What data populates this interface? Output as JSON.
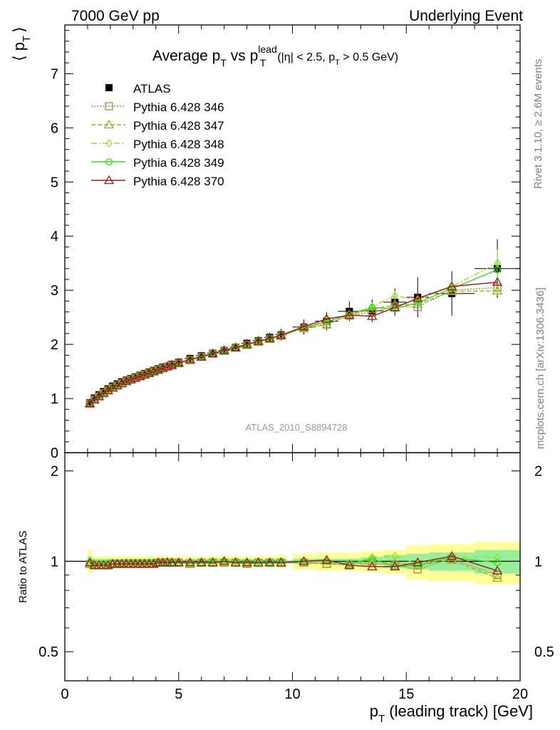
{
  "header": {
    "left": "7000 GeV pp",
    "right": "Underlying Event"
  },
  "side_labels": {
    "rivet": "Rivet 3.1.10, ≥ 2.6M events",
    "mcplots": "mcplots.cern.ch [arXiv:1306.3436]"
  },
  "chart_data": {
    "type": "line",
    "title": {
      "prefix": "Average p",
      "sub1": "T",
      "mid": " vs p",
      "sup": "lead",
      "sub2": "T",
      "cuts_a": "(|η| < 2.5, p",
      "cuts_sub": "T",
      "cuts_b": " > 0.5 GeV)"
    },
    "analysis_label": "ATLAS_2010_S8894728",
    "xlabel": {
      "main": "p",
      "sub": "T",
      "rest": " (leading track) [GeV]"
    },
    "ylabel": {
      "open": "⟨ p",
      "sub": "T",
      "close": "⟩"
    },
    "ratio_ylabel": "Ratio to ATLAS",
    "xlim": [
      0,
      20
    ],
    "ylim": [
      0,
      7.9
    ],
    "ratio_ylim": [
      0.4,
      2.3
    ],
    "ratio_log": true,
    "xticks": [
      "0",
      "5",
      "10",
      "15",
      "20"
    ],
    "yticks": [
      "0",
      "1",
      "2",
      "3",
      "4",
      "5",
      "6",
      "7"
    ],
    "ratio_yticks": [
      "0.5",
      "1",
      "2"
    ],
    "legend_position": "top-left",
    "x": [
      1.1,
      1.3,
      1.5,
      1.7,
      1.9,
      2.1,
      2.3,
      2.5,
      2.7,
      2.9,
      3.1,
      3.3,
      3.5,
      3.7,
      3.9,
      4.1,
      4.3,
      4.5,
      4.7,
      5.0,
      5.5,
      6.0,
      6.5,
      7.0,
      7.5,
      8.0,
      8.5,
      9.0,
      9.5,
      10.5,
      11.5,
      12.5,
      13.5,
      14.5,
      15.5,
      17.0,
      19.0
    ],
    "xerr": [
      0.1,
      0.1,
      0.1,
      0.1,
      0.1,
      0.1,
      0.1,
      0.1,
      0.1,
      0.1,
      0.1,
      0.1,
      0.1,
      0.1,
      0.1,
      0.1,
      0.1,
      0.1,
      0.1,
      0.2,
      0.25,
      0.25,
      0.25,
      0.25,
      0.25,
      0.25,
      0.25,
      0.25,
      0.25,
      0.5,
      0.5,
      0.5,
      0.5,
      0.5,
      0.5,
      1.0,
      1.0
    ],
    "series": [
      {
        "name": "ATLAS",
        "color": "#000000",
        "marker": "filled-square",
        "dash": "",
        "values": [
          0.92,
          1.01,
          1.07,
          1.13,
          1.18,
          1.23,
          1.27,
          1.31,
          1.34,
          1.37,
          1.4,
          1.43,
          1.46,
          1.49,
          1.52,
          1.55,
          1.58,
          1.6,
          1.63,
          1.67,
          1.74,
          1.79,
          1.84,
          1.89,
          1.95,
          2.02,
          2.07,
          2.13,
          2.18,
          2.32,
          2.43,
          2.61,
          2.62,
          2.78,
          2.87,
          2.94,
          3.4
        ],
        "band_stat": [
          0.04,
          0.02,
          0.02,
          0.02,
          0.02,
          0.02,
          0.02,
          0.02,
          0.02,
          0.02,
          0.02,
          0.02,
          0.02,
          0.02,
          0.02,
          0.02,
          0.02,
          0.02,
          0.02,
          0.02,
          0.02,
          0.02,
          0.02,
          0.02,
          0.02,
          0.02,
          0.02,
          0.02,
          0.02,
          0.02,
          0.02,
          0.02,
          0.03,
          0.05,
          0.06,
          0.07,
          0.09
        ],
        "band_total": [
          0.09,
          0.04,
          0.04,
          0.04,
          0.04,
          0.04,
          0.04,
          0.04,
          0.04,
          0.04,
          0.04,
          0.04,
          0.04,
          0.04,
          0.04,
          0.04,
          0.04,
          0.04,
          0.04,
          0.04,
          0.04,
          0.04,
          0.04,
          0.04,
          0.04,
          0.04,
          0.04,
          0.04,
          0.05,
          0.06,
          0.07,
          0.07,
          0.08,
          0.09,
          0.13,
          0.14,
          0.16
        ]
      },
      {
        "name": "Pythia 6.428 346",
        "color": "#b5824a",
        "marker": "open-square",
        "dash": "2,2",
        "values": [
          0.9,
          0.98,
          1.04,
          1.1,
          1.15,
          1.2,
          1.24,
          1.28,
          1.32,
          1.35,
          1.38,
          1.41,
          1.44,
          1.47,
          1.5,
          1.53,
          1.56,
          1.59,
          1.61,
          1.65,
          1.71,
          1.77,
          1.83,
          1.88,
          1.94,
          1.99,
          2.05,
          2.1,
          2.16,
          2.3,
          2.38,
          2.53,
          2.6,
          2.7,
          2.69,
          3.0,
          3.05
        ],
        "ratio": [
          0.98,
          0.97,
          0.97,
          0.97,
          0.97,
          0.98,
          0.98,
          0.98,
          0.98,
          0.98,
          0.98,
          0.98,
          0.98,
          0.98,
          0.98,
          0.99,
          0.99,
          0.99,
          0.99,
          0.99,
          0.98,
          0.99,
          0.99,
          0.99,
          0.99,
          0.98,
          0.99,
          0.99,
          0.99,
          0.99,
          0.98,
          0.97,
          0.99,
          0.97,
          0.94,
          1.02,
          0.9
        ]
      },
      {
        "name": "Pythia 6.428 347",
        "color": "#9fae24",
        "marker": "open-triangle",
        "dash": "6,3",
        "values": [
          0.9,
          0.98,
          1.04,
          1.1,
          1.15,
          1.2,
          1.24,
          1.28,
          1.32,
          1.35,
          1.38,
          1.41,
          1.44,
          1.47,
          1.5,
          1.53,
          1.56,
          1.59,
          1.61,
          1.65,
          1.71,
          1.77,
          1.83,
          1.88,
          1.94,
          1.99,
          2.05,
          2.1,
          2.16,
          2.3,
          2.36,
          2.55,
          2.65,
          2.73,
          2.74,
          2.98,
          2.99
        ],
        "ratio": [
          0.98,
          0.97,
          0.97,
          0.97,
          0.97,
          0.98,
          0.98,
          0.98,
          0.98,
          0.98,
          0.98,
          0.98,
          0.98,
          0.98,
          0.98,
          0.99,
          0.99,
          0.99,
          0.99,
          0.99,
          0.98,
          0.99,
          0.99,
          0.99,
          0.99,
          0.98,
          0.99,
          0.99,
          0.99,
          0.99,
          0.98,
          0.98,
          1.0,
          0.99,
          0.97,
          1.01,
          0.88
        ]
      },
      {
        "name": "Pythia 6.428 348",
        "color": "#98e030",
        "marker": "open-diamond",
        "dash": "8,3,2,3",
        "values": [
          0.91,
          0.99,
          1.05,
          1.11,
          1.16,
          1.21,
          1.25,
          1.29,
          1.33,
          1.36,
          1.39,
          1.42,
          1.45,
          1.48,
          1.51,
          1.54,
          1.57,
          1.6,
          1.62,
          1.66,
          1.72,
          1.78,
          1.84,
          1.89,
          1.95,
          2.0,
          2.06,
          2.11,
          2.17,
          2.31,
          2.44,
          2.56,
          2.7,
          2.9,
          2.82,
          3.07,
          3.5
        ],
        "ratio": [
          0.99,
          0.98,
          0.98,
          0.98,
          0.98,
          0.98,
          0.98,
          0.98,
          0.99,
          0.99,
          0.99,
          0.99,
          0.99,
          0.99,
          0.99,
          0.99,
          0.99,
          1.0,
          0.99,
          0.99,
          0.99,
          0.99,
          1.0,
          1.0,
          1.0,
          0.99,
          1.0,
          0.99,
          1.0,
          1.0,
          1.0,
          0.98,
          1.03,
          1.04,
          0.98,
          1.04,
          1.03
        ]
      },
      {
        "name": "Pythia 6.428 349",
        "color": "#3cd824",
        "marker": "open-circle",
        "dash": "",
        "values": [
          0.91,
          0.99,
          1.05,
          1.11,
          1.16,
          1.21,
          1.25,
          1.29,
          1.33,
          1.36,
          1.39,
          1.42,
          1.45,
          1.48,
          1.51,
          1.54,
          1.57,
          1.6,
          1.62,
          1.66,
          1.72,
          1.78,
          1.84,
          1.89,
          1.95,
          2.0,
          2.06,
          2.11,
          2.17,
          2.31,
          2.42,
          2.55,
          2.68,
          2.66,
          2.77,
          3.03,
          3.38
        ],
        "ratio": [
          0.99,
          0.98,
          0.98,
          0.98,
          0.98,
          0.98,
          0.98,
          0.98,
          0.99,
          0.99,
          0.99,
          0.99,
          0.99,
          0.99,
          0.99,
          0.99,
          0.99,
          1.0,
          0.99,
          0.99,
          0.99,
          0.99,
          1.0,
          1.0,
          1.0,
          0.99,
          1.0,
          0.99,
          1.0,
          1.0,
          1.0,
          0.98,
          1.02,
          0.96,
          0.97,
          1.03,
          0.99
        ]
      },
      {
        "name": "Pythia 6.428 370",
        "color": "#9b1b1b",
        "marker": "open-triangle",
        "dash": "",
        "values": [
          0.91,
          0.98,
          1.04,
          1.1,
          1.15,
          1.2,
          1.24,
          1.28,
          1.32,
          1.35,
          1.38,
          1.41,
          1.44,
          1.47,
          1.5,
          1.53,
          1.56,
          1.59,
          1.62,
          1.66,
          1.72,
          1.77,
          1.83,
          1.89,
          1.94,
          2.0,
          2.06,
          2.11,
          2.17,
          2.33,
          2.47,
          2.54,
          2.52,
          2.68,
          2.85,
          3.07,
          3.15
        ],
        "ratio": [
          0.99,
          0.97,
          0.97,
          0.97,
          0.97,
          0.98,
          0.98,
          0.98,
          0.98,
          0.98,
          0.98,
          0.98,
          0.98,
          0.98,
          0.98,
          0.99,
          0.99,
          0.99,
          0.99,
          0.99,
          0.99,
          0.99,
          0.99,
          1.0,
          0.99,
          0.99,
          0.99,
          0.99,
          0.99,
          1.0,
          1.01,
          0.97,
          0.96,
          0.96,
          0.99,
          1.04,
          0.93
        ]
      }
    ],
    "error_bars": {
      "Pythia 6.428 348": [
        0,
        0,
        0,
        0,
        0,
        0,
        0,
        0,
        0,
        0,
        0,
        0,
        0,
        0,
        0,
        0,
        0,
        0,
        0,
        0,
        0,
        0,
        0,
        0,
        0,
        0,
        0,
        0,
        0,
        0,
        0,
        0,
        0.06,
        0.09,
        0.0,
        0.1,
        0.25
      ],
      "Pythia 6.428 349": [
        0,
        0,
        0,
        0,
        0,
        0,
        0,
        0,
        0,
        0,
        0,
        0,
        0,
        0,
        0,
        0,
        0,
        0,
        0,
        0,
        0,
        0,
        0,
        0,
        0,
        0,
        0,
        0,
        0,
        0,
        0,
        0,
        0.05,
        0.06,
        0.0,
        0.08,
        0.2
      ],
      "Pythia 6.428 347": [
        0,
        0,
        0,
        0,
        0,
        0,
        0,
        0,
        0,
        0,
        0,
        0,
        0,
        0,
        0,
        0,
        0,
        0,
        0,
        0,
        0,
        0,
        0,
        0,
        0,
        0,
        0,
        0,
        0,
        0,
        0,
        0,
        0.04,
        0.05,
        0.0,
        0.05,
        0.08
      ]
    }
  }
}
